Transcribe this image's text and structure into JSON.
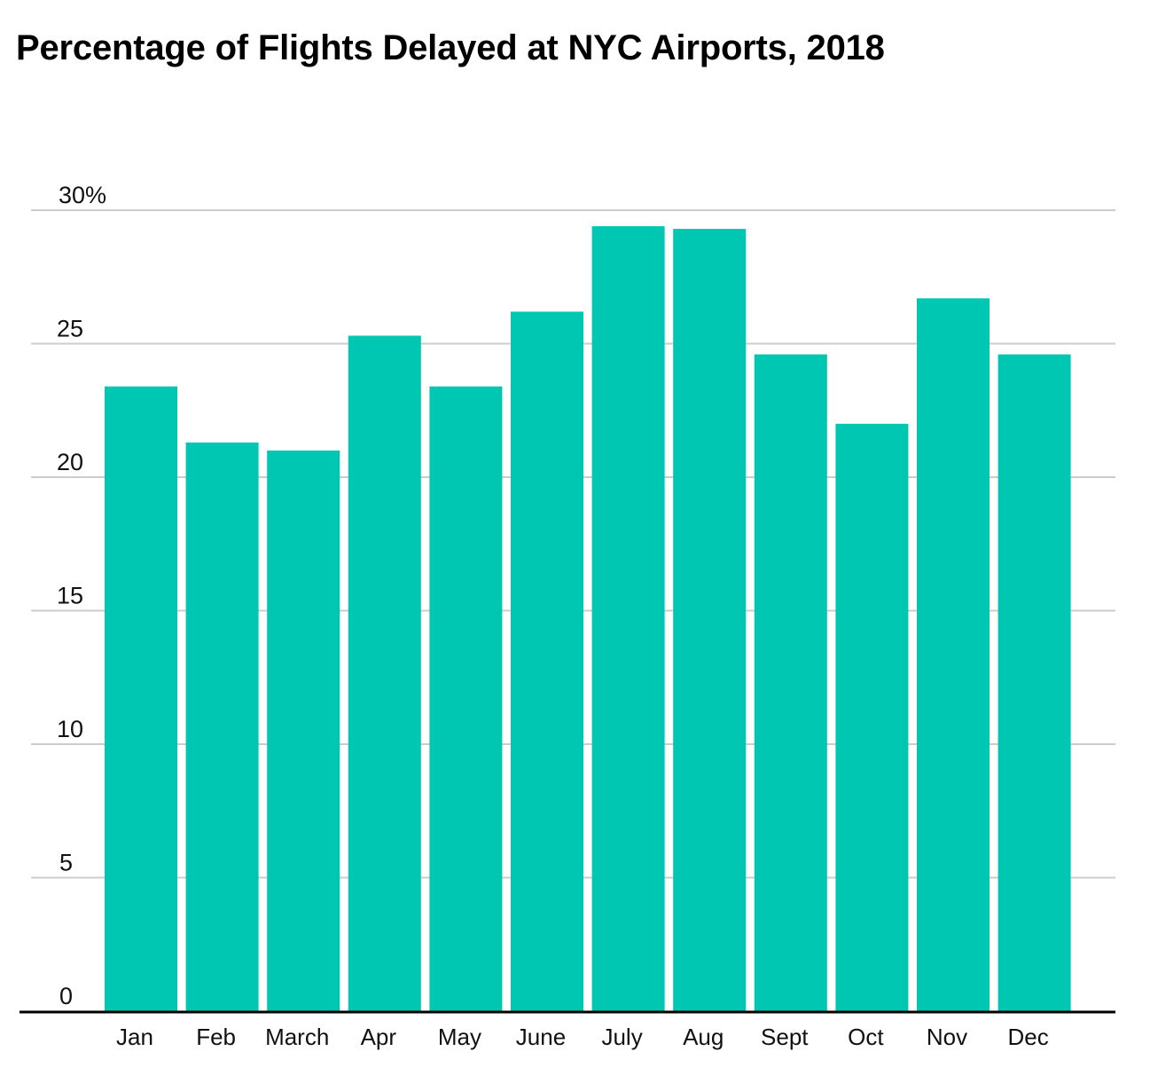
{
  "chart_data": {
    "type": "bar",
    "title": "Percentage of Flights Delayed at NYC Airports, 2018",
    "xlabel": "",
    "ylabel": "",
    "ylim": [
      0,
      30
    ],
    "y_ticks": [
      0,
      5,
      10,
      15,
      20,
      25,
      30
    ],
    "y_tick_labels": [
      "0",
      "5",
      "10",
      "15",
      "20",
      "25",
      "30%"
    ],
    "grid": true,
    "legend": "none",
    "bar_color": "#00c7b2",
    "gridline_color": "#cccccc",
    "baseline_color": "#000000",
    "categories": [
      "Jan",
      "Feb",
      "March",
      "Apr",
      "May",
      "June",
      "July",
      "Aug",
      "Sept",
      "Oct",
      "Nov",
      "Dec"
    ],
    "values": [
      23.4,
      21.3,
      21.0,
      25.3,
      23.4,
      26.2,
      29.4,
      29.3,
      24.6,
      22.0,
      26.7,
      24.6
    ]
  }
}
